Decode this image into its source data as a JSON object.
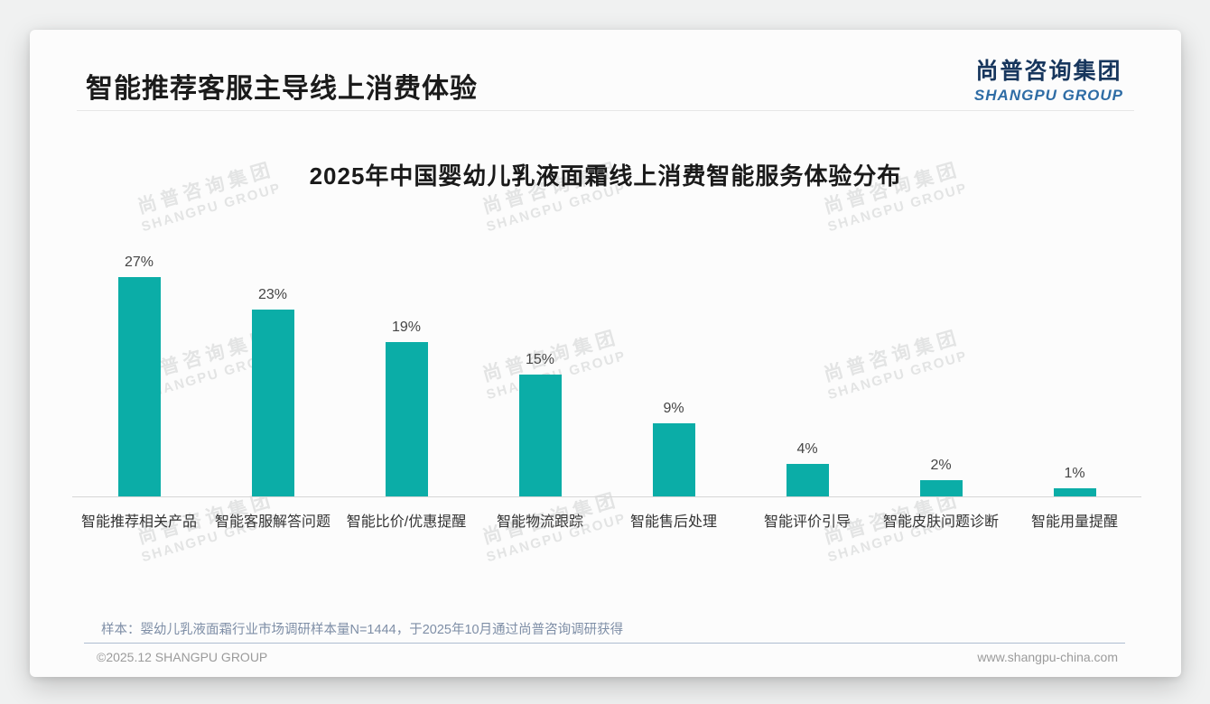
{
  "page": {
    "title": "智能推荐客服主导线上消费体验",
    "logo": {
      "cn": "尚普咨询集团",
      "en": "SHANGPU GROUP"
    },
    "watermark": {
      "cn": "尚普咨询集团",
      "en": "SHANGPU GROUP"
    },
    "footer": {
      "note": "样本：婴幼儿乳液面霜行业市场调研样本量N=1444，于2025年10月通过尚普咨询调研获得",
      "copyright": "©2025.12 SHANGPU GROUP",
      "website": "www.shangpu-china.com"
    }
  },
  "chart_data": {
    "type": "bar",
    "title": "2025年中国婴幼儿乳液面霜线上消费智能服务体验分布",
    "categories": [
      "智能推荐相关产品",
      "智能客服解答问题",
      "智能比价/优惠提醒",
      "智能物流跟踪",
      "智能售后处理",
      "智能评价引导",
      "智能皮肤问题诊断",
      "智能用量提醒"
    ],
    "values": [
      27,
      23,
      19,
      15,
      9,
      4,
      2,
      1
    ],
    "value_labels": [
      "27%",
      "23%",
      "19%",
      "15%",
      "9%",
      "4%",
      "2%",
      "1%"
    ],
    "xlabel": "",
    "ylabel": "",
    "ylim": [
      0,
      30
    ],
    "bar_color": "#0bada7",
    "grid": false,
    "legend": false,
    "data_labels_position": "above-bar"
  },
  "colors": {
    "bar": "#0bada7",
    "logo_cn": "#17365d",
    "logo_en": "#2e6ca5",
    "note": "#7e8ea6",
    "footer_line": "#aebdd0",
    "card_bg": "#fcfcfc",
    "page_bg": "#f0f1f1"
  }
}
